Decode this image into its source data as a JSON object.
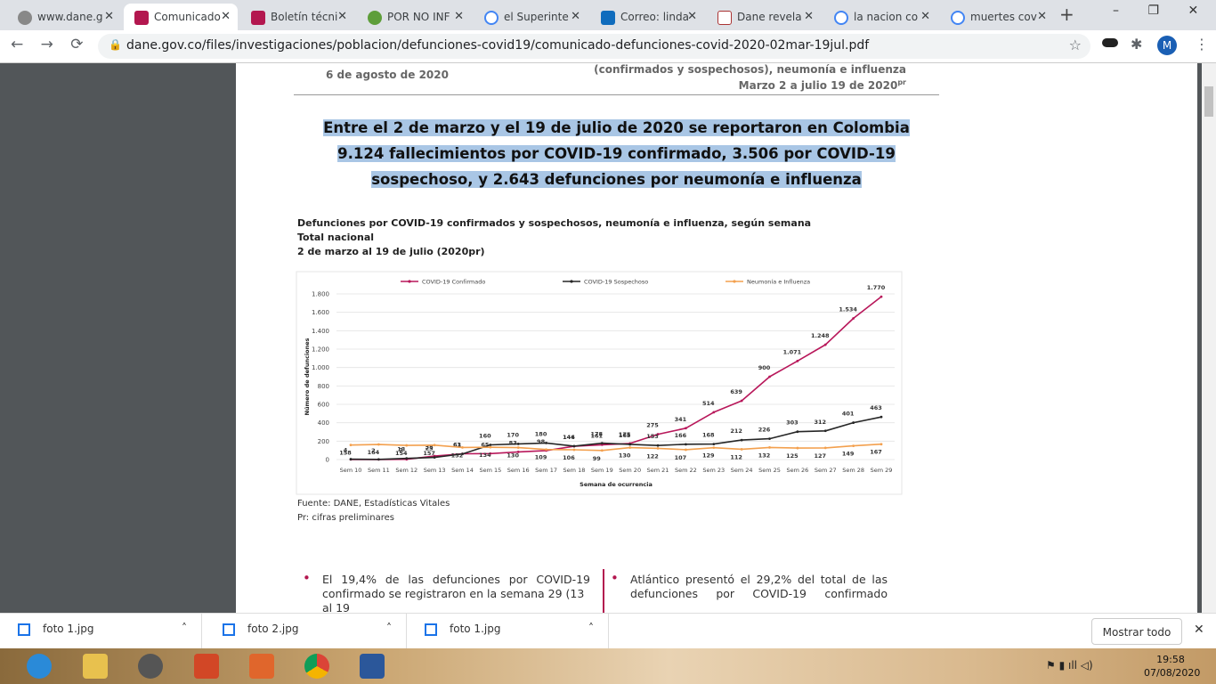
{
  "browser": {
    "tabs": [
      "www.dane.g",
      "Comunicado",
      "Boletín técni",
      "POR NO INF",
      "el Superinte",
      "Correo: linda",
      "Dane revela",
      "la nacion co",
      "muertes cov"
    ],
    "url": "dane.gov.co/files/investigaciones/poblacion/defunciones-covid19/comunicado-defunciones-covid-2020-02mar-19jul.pdf",
    "profile": "M"
  },
  "document": {
    "date": "6 de agosto de 2020",
    "header_right_1": "(confirmados y sospechosos), neumonía e influenza",
    "header_right_2": "Marzo 2 a julio 19 de 2020",
    "header_right_sup": "pr",
    "headline": [
      "Entre el 2 de marzo y el 19 de julio de 2020 se reportaron en Colombia",
      "9.124 fallecimientos por COVID-19 confirmado, 3.506 por COVID-19",
      "sospechoso, y 2.643 defunciones por neumonía e influenza"
    ],
    "source": "Fuente: DANE, Estadísticas Vitales",
    "note": "Pr: cifras preliminares",
    "bullets": [
      [
        "El 19,4% de las defunciones por COVID-19",
        "confirmado se registraron en la semana 29 (13 al 19"
      ],
      [
        "Atlántico presentó el 29,2% del total de las",
        "defunciones por COVID-19 confirmado"
      ]
    ]
  },
  "chart_data": {
    "type": "line",
    "title": "Defunciones por COVID-19 confirmados y sospechosos, neumonía e influenza, según semana",
    "subtitle": "Total nacional",
    "period": "2 de marzo al 19 de julio (2020pr)",
    "x_label": "Semana de ocurrencia",
    "y_label": "Número de defunciones",
    "categories": [
      "Sem 10",
      "Sem 11",
      "Sem 12",
      "Sem 13",
      "Sem 14",
      "Sem 15",
      "Sem 16",
      "Sem 17",
      "Sem 18",
      "Sem 19",
      "Sem 20",
      "Sem 21",
      "Sem 22",
      "Sem 23",
      "Sem 24",
      "Sem 25",
      "Sem 26",
      "Sem 27",
      "Sem 28",
      "Sem 29"
    ],
    "series": [
      {
        "name": "COVID-19 Confirmado",
        "color": "#b8175a",
        "values": [
          1,
          1,
          3,
          38,
          63,
          65,
          83,
          98,
          144,
          161,
          175,
          275,
          341,
          514,
          639,
          900,
          1071,
          1248,
          1534,
          1770
        ],
        "value_labels": [
          null,
          null,
          "3",
          "38",
          "63",
          "65",
          "83",
          "98",
          "144",
          "161",
          "175",
          "275",
          "341",
          "514",
          "639",
          "900",
          "1.071",
          "1.248",
          "1.534",
          "1.770"
        ]
      },
      {
        "name": "COVID-19 Sospechoso",
        "color": "#262626",
        "values": [
          4,
          2,
          13,
          23,
          61,
          160,
          170,
          180,
          146,
          178,
          165,
          153,
          166,
          168,
          212,
          226,
          303,
          312,
          401,
          463
        ]
      },
      {
        "name": "Neumonía e Influenza",
        "color": "#f3a04e",
        "values": [
          158,
          164,
          154,
          157,
          132,
          134,
          130,
          109,
          106,
          99,
          130,
          122,
          107,
          129,
          112,
          132,
          125,
          127,
          149,
          167
        ]
      }
    ],
    "ylim": [
      0,
      1800
    ],
    "yticks": [
      0,
      200,
      400,
      600,
      800,
      {
        "value": 1000,
        "label": "1.000"
      },
      {
        "value": 1200,
        "label": "1.200"
      },
      {
        "value": 1400,
        "label": "1.400"
      },
      {
        "value": 1600,
        "label": "1.600"
      },
      {
        "value": 1800,
        "label": "1.800"
      }
    ],
    "grid": true,
    "legend": "top"
  },
  "downloads": [
    "foto 1.jpg",
    "foto 2.jpg",
    "foto 1.jpg"
  ],
  "show_all": "Mostrar todo",
  "taskbar": {
    "time": "19:58",
    "date": "07/08/2020"
  }
}
